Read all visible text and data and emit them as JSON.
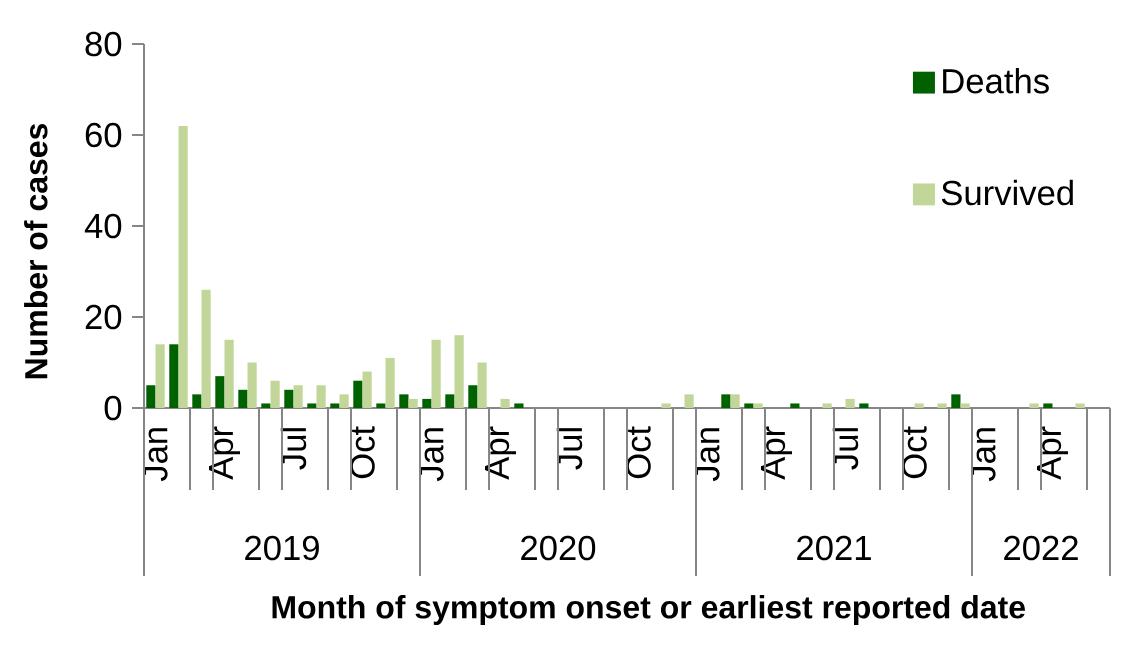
{
  "chart_data": {
    "type": "bar",
    "xlabel": "Month of symptom onset or earliest reported date",
    "ylabel": "Number of cases",
    "categories": [
      "Jan",
      null,
      null,
      "Apr",
      null,
      null,
      "Jul",
      null,
      null,
      "Oct",
      null,
      null,
      "Jan",
      null,
      null,
      "Apr",
      null,
      null,
      "Jul",
      null,
      null,
      "Oct",
      null,
      null,
      "Jan",
      null,
      null,
      "Apr",
      null,
      null,
      "Jul",
      null,
      null,
      "Oct",
      null,
      null,
      "Jan",
      null,
      null,
      "Apr",
      null,
      null
    ],
    "series": [
      {
        "name": "Deaths",
        "color": "#006100",
        "values": [
          5,
          14,
          3,
          7,
          4,
          1,
          4,
          1,
          1,
          6,
          1,
          3,
          2,
          3,
          5,
          0,
          1,
          0,
          0,
          0,
          0,
          0,
          0,
          0,
          0,
          3,
          1,
          0,
          1,
          0,
          0,
          1,
          0,
          0,
          0,
          3,
          0,
          0,
          0,
          1,
          0,
          0
        ]
      },
      {
        "name": "Survived",
        "color": "#C2D69A",
        "values": [
          14,
          62,
          26,
          15,
          10,
          6,
          5,
          5,
          3,
          8,
          11,
          2,
          15,
          16,
          10,
          2,
          0,
          0,
          0,
          0,
          0,
          0,
          1,
          3,
          0,
          3,
          1,
          0,
          0,
          1,
          2,
          0,
          0,
          1,
          1,
          1,
          0,
          0,
          1,
          0,
          1,
          0
        ]
      }
    ],
    "ylim": [
      0,
      80
    ],
    "yticks": [
      0,
      20,
      40,
      60,
      80
    ],
    "legend": "top right",
    "annotations": [
      "2019",
      "2020",
      "2021",
      "2022"
    ]
  }
}
